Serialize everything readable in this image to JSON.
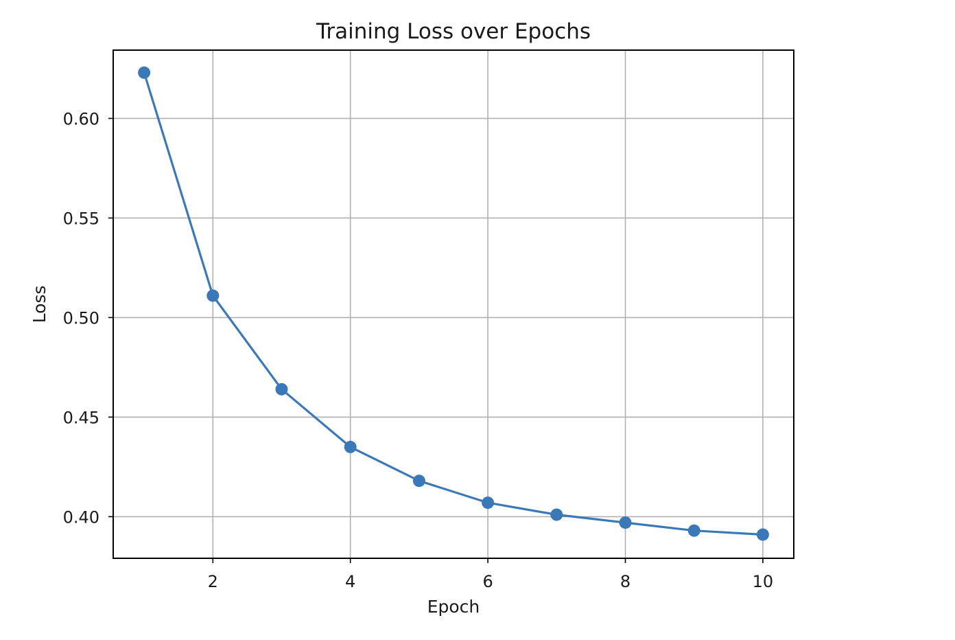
{
  "chart_data": {
    "type": "line",
    "title": "Training Loss over Epochs",
    "xlabel": "Epoch",
    "ylabel": "Loss",
    "xlim": [
      0.55,
      10.45
    ],
    "ylim": [
      0.3791,
      0.6343
    ],
    "xticks": [
      2,
      4,
      6,
      8,
      10
    ],
    "xtick_labels": [
      "2",
      "4",
      "6",
      "8",
      "10"
    ],
    "yticks": [
      0.4,
      0.45,
      0.5,
      0.55,
      0.6
    ],
    "ytick_labels": [
      "0.40",
      "0.45",
      "0.50",
      "0.55",
      "0.60"
    ],
    "grid": true,
    "legend": "none",
    "series": [
      {
        "color": "#3a78b8",
        "marker": "circle",
        "x": [
          1,
          2,
          3,
          4,
          5,
          6,
          7,
          8,
          9,
          10
        ],
        "y": [
          0.623,
          0.511,
          0.464,
          0.435,
          0.418,
          0.407,
          0.401,
          0.397,
          0.393,
          0.391
        ]
      }
    ]
  }
}
